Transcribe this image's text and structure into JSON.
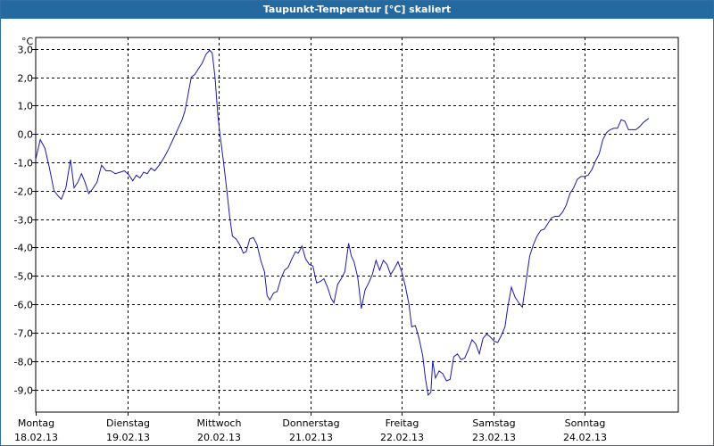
{
  "window": {
    "title": "Taupunkt-Temperatur [°C] skaliert"
  },
  "colors": {
    "titlebar": "#246aa0",
    "line": "#1a1aa8",
    "grid": "#000000"
  },
  "chart_data": {
    "type": "line",
    "y_unit": "°C",
    "ylim": [
      -9.8,
      3.4
    ],
    "y_ticks": [
      {
        "value": 3,
        "label": "3,0"
      },
      {
        "value": 2,
        "label": "2,0"
      },
      {
        "value": 1,
        "label": "1,0"
      },
      {
        "value": 0,
        "label": "0,0"
      },
      {
        "value": -1,
        "label": "-1,0"
      },
      {
        "value": -2,
        "label": "-2,0"
      },
      {
        "value": -3,
        "label": "-3,0"
      },
      {
        "value": -4,
        "label": "-4,0"
      },
      {
        "value": -5,
        "label": "-5,0"
      },
      {
        "value": -6,
        "label": "-6,0"
      },
      {
        "value": -7,
        "label": "-7,0"
      },
      {
        "value": -8,
        "label": "-8,0"
      },
      {
        "value": -9,
        "label": "-9,0"
      }
    ],
    "x_range_days": [
      0,
      7
    ],
    "x_ticks": [
      {
        "day": 0,
        "weekday": "Montag",
        "date": "18.02.13"
      },
      {
        "day": 1,
        "weekday": "Dienstag",
        "date": "19.02.13"
      },
      {
        "day": 2,
        "weekday": "Mittwoch",
        "date": "20.02.13"
      },
      {
        "day": 3,
        "weekday": "Donnerstag",
        "date": "21.02.13"
      },
      {
        "day": 4,
        "weekday": "Freitag",
        "date": "22.02.13"
      },
      {
        "day": 5,
        "weekday": "Samstag",
        "date": "23.02.13"
      },
      {
        "day": 6,
        "weekday": "Sonntag",
        "date": "24.02.13"
      }
    ],
    "grid": true,
    "series": [
      {
        "points": [
          [
            0.0,
            -0.9
          ],
          [
            0.05,
            -0.2
          ],
          [
            0.1,
            -0.5
          ],
          [
            0.15,
            -1.2
          ],
          [
            0.2,
            -2.0
          ],
          [
            0.25,
            -2.2
          ],
          [
            0.28,
            -2.3
          ],
          [
            0.33,
            -1.9
          ],
          [
            0.38,
            -0.9
          ],
          [
            0.42,
            -1.9
          ],
          [
            0.46,
            -1.7
          ],
          [
            0.5,
            -1.4
          ],
          [
            0.54,
            -1.7
          ],
          [
            0.58,
            -2.1
          ],
          [
            0.62,
            -1.95
          ],
          [
            0.67,
            -1.7
          ],
          [
            0.72,
            -1.1
          ],
          [
            0.77,
            -1.3
          ],
          [
            0.82,
            -1.3
          ],
          [
            0.87,
            -1.4
          ],
          [
            0.92,
            -1.35
          ],
          [
            0.97,
            -1.3
          ],
          [
            1.02,
            -1.45
          ],
          [
            1.06,
            -1.65
          ],
          [
            1.1,
            -1.45
          ],
          [
            1.14,
            -1.55
          ],
          [
            1.18,
            -1.35
          ],
          [
            1.22,
            -1.4
          ],
          [
            1.26,
            -1.2
          ],
          [
            1.3,
            -1.3
          ],
          [
            1.35,
            -1.1
          ],
          [
            1.4,
            -0.85
          ],
          [
            1.45,
            -0.55
          ],
          [
            1.5,
            -0.2
          ],
          [
            1.55,
            0.15
          ],
          [
            1.6,
            0.5
          ],
          [
            1.63,
            0.8
          ],
          [
            1.66,
            1.3
          ],
          [
            1.7,
            2.0
          ],
          [
            1.74,
            2.1
          ],
          [
            1.78,
            2.3
          ],
          [
            1.82,
            2.5
          ],
          [
            1.86,
            2.8
          ],
          [
            1.9,
            2.95
          ],
          [
            1.93,
            2.85
          ],
          [
            1.96,
            2.0
          ],
          [
            1.99,
            0.7
          ],
          [
            2.01,
            0.1
          ],
          [
            2.05,
            -0.9
          ],
          [
            2.09,
            -2.0
          ],
          [
            2.12,
            -2.9
          ],
          [
            2.15,
            -3.6
          ],
          [
            2.19,
            -3.7
          ],
          [
            2.23,
            -3.9
          ],
          [
            2.27,
            -4.2
          ],
          [
            2.3,
            -4.15
          ],
          [
            2.34,
            -3.7
          ],
          [
            2.38,
            -3.65
          ],
          [
            2.42,
            -3.9
          ],
          [
            2.46,
            -4.45
          ],
          [
            2.5,
            -4.85
          ],
          [
            2.53,
            -5.7
          ],
          [
            2.56,
            -5.85
          ],
          [
            2.6,
            -5.6
          ],
          [
            2.64,
            -5.55
          ],
          [
            2.68,
            -5.1
          ],
          [
            2.72,
            -4.8
          ],
          [
            2.76,
            -4.7
          ],
          [
            2.8,
            -4.4
          ],
          [
            2.84,
            -4.15
          ],
          [
            2.87,
            -4.2
          ],
          [
            2.91,
            -3.95
          ],
          [
            2.95,
            -4.4
          ],
          [
            2.99,
            -4.6
          ],
          [
            3.03,
            -4.65
          ],
          [
            3.07,
            -5.25
          ],
          [
            3.11,
            -5.2
          ],
          [
            3.15,
            -5.1
          ],
          [
            3.19,
            -5.4
          ],
          [
            3.23,
            -5.8
          ],
          [
            3.26,
            -5.95
          ],
          [
            3.3,
            -5.3
          ],
          [
            3.34,
            -5.1
          ],
          [
            3.38,
            -4.85
          ],
          [
            3.42,
            -3.85
          ],
          [
            3.45,
            -4.3
          ],
          [
            3.48,
            -4.5
          ],
          [
            3.52,
            -5.05
          ],
          [
            3.56,
            -6.15
          ],
          [
            3.6,
            -5.5
          ],
          [
            3.64,
            -5.25
          ],
          [
            3.68,
            -4.95
          ],
          [
            3.72,
            -4.45
          ],
          [
            3.76,
            -4.8
          ],
          [
            3.8,
            -4.45
          ],
          [
            3.84,
            -4.6
          ],
          [
            3.88,
            -4.95
          ],
          [
            3.92,
            -4.75
          ],
          [
            3.96,
            -4.5
          ],
          [
            4.0,
            -4.85
          ],
          [
            4.04,
            -5.35
          ],
          [
            4.08,
            -6.0
          ],
          [
            4.11,
            -6.8
          ],
          [
            4.15,
            -6.75
          ],
          [
            4.19,
            -7.2
          ],
          [
            4.23,
            -7.8
          ],
          [
            4.26,
            -8.6
          ],
          [
            4.29,
            -9.2
          ],
          [
            4.32,
            -9.1
          ],
          [
            4.34,
            -8.0
          ],
          [
            4.37,
            -8.6
          ],
          [
            4.41,
            -8.35
          ],
          [
            4.45,
            -8.45
          ],
          [
            4.49,
            -8.7
          ],
          [
            4.53,
            -8.65
          ],
          [
            4.57,
            -7.85
          ],
          [
            4.61,
            -7.75
          ],
          [
            4.65,
            -7.95
          ],
          [
            4.69,
            -7.9
          ],
          [
            4.73,
            -7.6
          ],
          [
            4.77,
            -7.25
          ],
          [
            4.81,
            -7.4
          ],
          [
            4.85,
            -7.75
          ],
          [
            4.89,
            -7.2
          ],
          [
            4.93,
            -7.05
          ],
          [
            4.97,
            -7.15
          ],
          [
            5.01,
            -7.3
          ],
          [
            5.05,
            -7.35
          ],
          [
            5.09,
            -7.1
          ],
          [
            5.13,
            -6.8
          ],
          [
            5.16,
            -6.1
          ],
          [
            5.2,
            -5.4
          ],
          [
            5.24,
            -5.75
          ],
          [
            5.28,
            -5.95
          ],
          [
            5.32,
            -6.1
          ],
          [
            5.36,
            -5.2
          ],
          [
            5.4,
            -4.3
          ],
          [
            5.44,
            -3.9
          ],
          [
            5.48,
            -3.6
          ],
          [
            5.52,
            -3.4
          ],
          [
            5.56,
            -3.35
          ],
          [
            5.6,
            -3.15
          ],
          [
            5.64,
            -2.95
          ],
          [
            5.68,
            -2.9
          ],
          [
            5.72,
            -2.9
          ],
          [
            5.76,
            -2.75
          ],
          [
            5.8,
            -2.5
          ],
          [
            5.84,
            -2.1
          ],
          [
            5.88,
            -1.9
          ],
          [
            5.92,
            -1.6
          ],
          [
            5.96,
            -1.5
          ],
          [
            6.0,
            -1.5
          ],
          [
            6.04,
            -1.45
          ],
          [
            6.08,
            -1.25
          ],
          [
            6.12,
            -0.95
          ],
          [
            6.16,
            -0.7
          ],
          [
            6.2,
            -0.2
          ],
          [
            6.24,
            0.05
          ],
          [
            6.28,
            0.15
          ],
          [
            6.32,
            0.2
          ],
          [
            6.36,
            0.2
          ],
          [
            6.4,
            0.5
          ],
          [
            6.44,
            0.45
          ],
          [
            6.48,
            0.15
          ],
          [
            6.52,
            0.15
          ],
          [
            6.56,
            0.15
          ],
          [
            6.6,
            0.25
          ],
          [
            6.64,
            0.4
          ],
          [
            6.68,
            0.5
          ],
          [
            6.7,
            0.55
          ]
        ]
      }
    ]
  }
}
